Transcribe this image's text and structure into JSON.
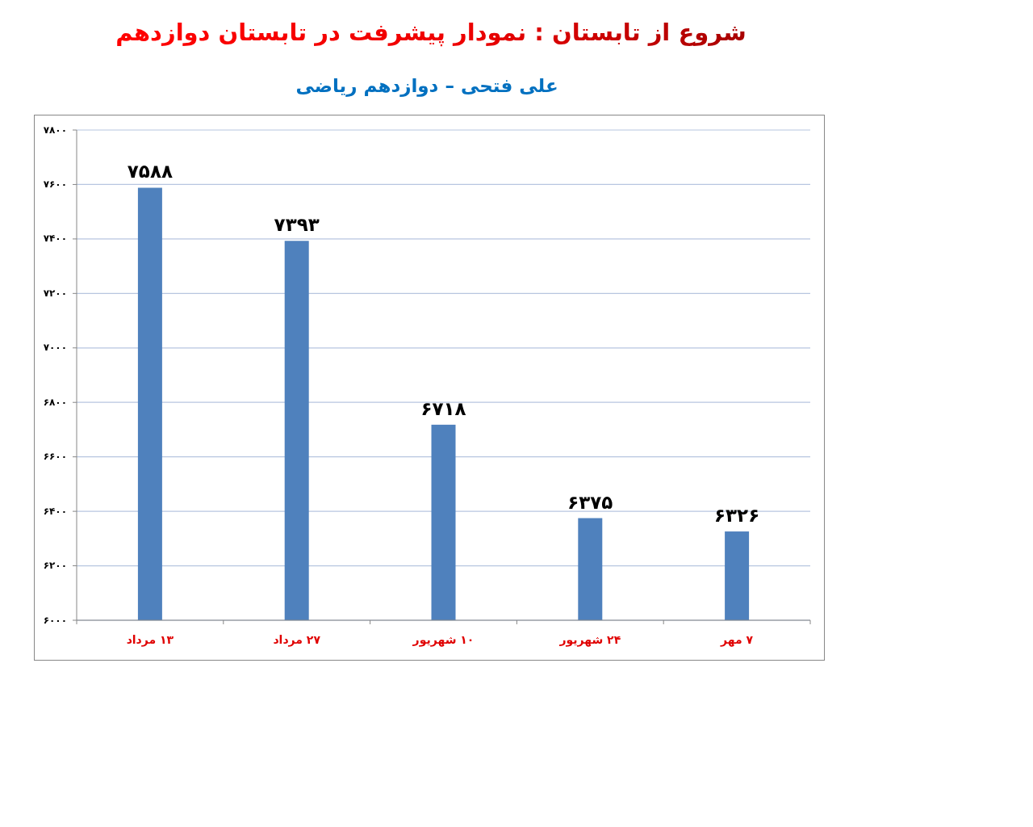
{
  "chart_data": {
    "type": "bar",
    "title": "شروع از تابستان : نمودار پیشرفت در تابستان دوازدهم",
    "subtitle": "علی فتحی – دوازدهم ریاضی",
    "categories": [
      "۱۳ مرداد",
      "۲۷ مرداد",
      "۱۰ شهریور",
      "۲۴ شهریور",
      "۷ مهر"
    ],
    "values": [
      7588,
      7393,
      6718,
      6375,
      6326
    ],
    "color": "#4f81bd",
    "value_labels": [
      "۷۵۸۸",
      "۷۳۹۳",
      "۶۷۱۸",
      "۶۳۷۵",
      "۶۳۲۶"
    ],
    "ylim": [
      6000,
      7800
    ],
    "yticks": [
      {
        "value": 6000,
        "label": "۶۰۰۰"
      },
      {
        "value": 6200,
        "label": "۶۲۰۰"
      },
      {
        "value": 6400,
        "label": "۶۴۰۰"
      },
      {
        "value": 6600,
        "label": "۶۶۰۰"
      },
      {
        "value": 6800,
        "label": "۶۸۰۰"
      },
      {
        "value": 7000,
        "label": "۷۰۰۰"
      },
      {
        "value": 7200,
        "label": "۷۲۰۰"
      },
      {
        "value": 7400,
        "label": "۷۴۰۰"
      },
      {
        "value": 7600,
        "label": "۷۶۰۰"
      },
      {
        "value": 7800,
        "label": "۷۸۰۰"
      }
    ],
    "grid": "y"
  }
}
